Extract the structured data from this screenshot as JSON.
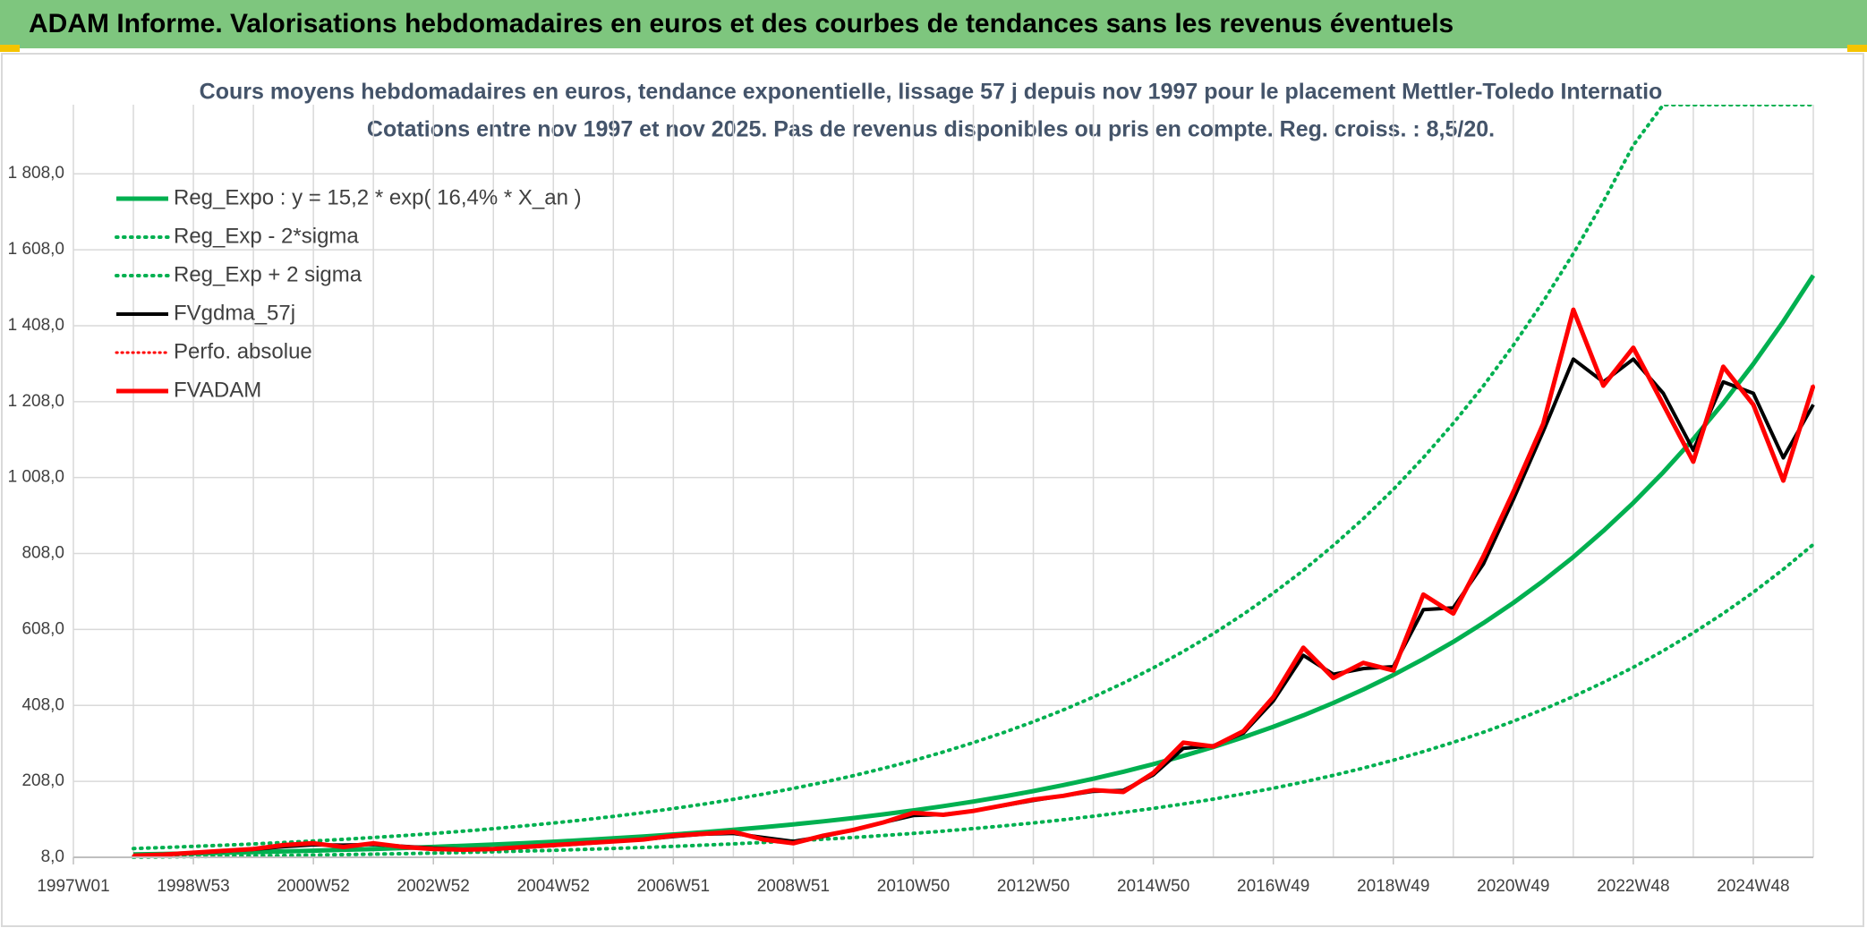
{
  "chart_data": {
    "type": "line",
    "page_title": "ADAM Informe. Valorisations hebdomadaires en euros et des courbes de tendances sans les revenus éventuels",
    "title": "Cours moyens hebdomadaires en euros, tendance exponentielle, lissage 57 j depuis nov 1997 pour le placement Mettler-Toledo Internatio",
    "subtitle": "Cotations entre nov 1997 et nov 2025. Pas de revenus disponibles ou pris en compte. Reg. croiss. : 8,5/20.",
    "categories": [
      "1997W01",
      null,
      null,
      null,
      "1998W53",
      null,
      null,
      null,
      "2000W52",
      null,
      null,
      null,
      "2002W52",
      null,
      null,
      null,
      "2004W52",
      null,
      null,
      null,
      "2006W51",
      null,
      null,
      null,
      "2008W51",
      null,
      null,
      null,
      "2010W50",
      null,
      null,
      null,
      "2012W50",
      null,
      null,
      null,
      "2014W50",
      null,
      null,
      null,
      "2016W49",
      null,
      null,
      null,
      "2018W49",
      null,
      null,
      null,
      "2020W49",
      null,
      null,
      null,
      "2022W48",
      null,
      null,
      null,
      "2024W48",
      null,
      null
    ],
    "ylim": [
      8,
      1990
    ],
    "yticks": [
      {
        "value": 8,
        "label": "8,0"
      },
      {
        "value": 208,
        "label": "208,0"
      },
      {
        "value": 408,
        "label": "408,0"
      },
      {
        "value": 608,
        "label": "608,0"
      },
      {
        "value": 808,
        "label": "808,0"
      },
      {
        "value": 1008,
        "label": "1 008,0"
      },
      {
        "value": 1208,
        "label": "1 208,0"
      },
      {
        "value": 1408,
        "label": "1 408,0"
      },
      {
        "value": 1608,
        "label": "1 608,0"
      },
      {
        "value": 1808,
        "label": "1 808,0"
      }
    ],
    "grid": true,
    "legend": "upper left",
    "series": [
      {
        "name": "Reg_Expo : y = 15,2 * exp( 16,4% *  X_an )",
        "color": "#00b050",
        "style": "solid",
        "width": 5,
        "values": [
          null,
          null,
          15.6,
          16.9,
          18.4,
          19.9,
          21.6,
          23.5,
          25.5,
          27.7,
          30.0,
          32.6,
          35.4,
          38.4,
          41.7,
          45.2,
          49.1,
          53.3,
          57.9,
          62.8,
          68.2,
          74.0,
          80.3,
          87.2,
          94.7,
          102.8,
          111.5,
          121.1,
          131.4,
          142.7,
          154.9,
          168.1,
          182.5,
          198.1,
          215.0,
          233.4,
          253.4,
          275.0,
          298.5,
          324.1,
          351.8,
          381.8,
          414.5,
          449.9,
          488.4,
          530.2,
          575.5,
          624.7,
          678.1,
          736.1,
          799.0,
          867.4,
          941.5,
          1022.0,
          1109.4,
          1204.3,
          1307.2,
          1419.0,
          1540.3
        ]
      },
      {
        "name": "Reg_Exp - 2*sigma",
        "color": "#00b050",
        "style": "dotted",
        "width": 4,
        "values": [
          null,
          null,
          8.4,
          9.1,
          9.9,
          10.7,
          11.7,
          12.7,
          13.8,
          15.0,
          16.2,
          17.6,
          19.1,
          20.7,
          22.5,
          24.4,
          26.5,
          28.8,
          31.3,
          33.9,
          36.8,
          40.0,
          43.4,
          47.1,
          51.1,
          55.5,
          60.2,
          65.4,
          71.0,
          77.1,
          83.6,
          90.8,
          98.6,
          107.0,
          116.1,
          126.0,
          136.8,
          148.5,
          161.2,
          175.0,
          190.0,
          206.2,
          223.8,
          242.9,
          263.7,
          286.3,
          310.8,
          337.3,
          366.2,
          397.5,
          431.5,
          468.4,
          508.4,
          551.9,
          599.1,
          650.3,
          705.9,
          766.3,
          831.8
        ]
      },
      {
        "name": "Reg_Exp + 2 sigma",
        "color": "#00b050",
        "style": "dotted",
        "width": 4,
        "values": [
          null,
          null,
          31.2,
          33.8,
          36.8,
          39.8,
          43.2,
          47.0,
          51.0,
          55.4,
          60.0,
          65.2,
          70.8,
          76.8,
          83.4,
          90.4,
          98.2,
          106.6,
          115.8,
          125.6,
          136.4,
          148.0,
          160.6,
          174.4,
          189.4,
          205.6,
          223.0,
          242.2,
          262.8,
          285.4,
          309.8,
          336.2,
          365.0,
          396.2,
          430.0,
          466.8,
          506.8,
          550.0,
          597.0,
          648.2,
          703.6,
          763.6,
          829.0,
          899.8,
          976.8,
          1060.4,
          1151.0,
          1249.4,
          1356.2,
          1472.2,
          1598.0,
          1734.8,
          1883.0,
          1990,
          1990,
          1990,
          1990,
          1990,
          1990
        ]
      },
      {
        "name": "FVgdma_57j",
        "color": "#000000",
        "style": "solid",
        "width": 4,
        "values": [
          null,
          null,
          12,
          15,
          19,
          24,
          29,
          36,
          41,
          40,
          42,
          37,
          32,
          29,
          30,
          34,
          39,
          44,
          50,
          55,
          63,
          69,
          71,
          60,
          50,
          63,
          80,
          100,
          118,
          121,
          130,
          144,
          158,
          170,
          182,
          184,
          225,
          295,
          302,
          335,
          420,
          540,
          490,
          505,
          510,
          660,
          665,
          780,
          950,
          1130,
          1320,
          1260,
          1320,
          1230,
          1080,
          1260,
          1230,
          1060,
          1200
        ]
      },
      {
        "name": "Perfo. absolue",
        "color": "#ff0000",
        "style": "dotted",
        "width": 3,
        "values": [
          null,
          null,
          12,
          15,
          20,
          25,
          30,
          40,
          45,
          35,
          45,
          35,
          30,
          28,
          30,
          35,
          40,
          45,
          50,
          55,
          65,
          70,
          75,
          55,
          45,
          65,
          80,
          100,
          125,
          120,
          130,
          145,
          160,
          170,
          185,
          180,
          230,
          310,
          300,
          340,
          430,
          560,
          480,
          520,
          500,
          700,
          650,
          800,
          970,
          1150,
          1450,
          1250,
          1350,
          1200,
          1050,
          1300,
          1200,
          1000,
          1250
        ]
      },
      {
        "name": "FVADAM",
        "color": "#ff0000",
        "style": "solid",
        "width": 5,
        "values": [
          null,
          null,
          12,
          15,
          20,
          25,
          30,
          40,
          45,
          35,
          45,
          35,
          30,
          28,
          30,
          35,
          40,
          45,
          50,
          55,
          65,
          70,
          75,
          55,
          45,
          65,
          80,
          100,
          125,
          120,
          130,
          145,
          160,
          170,
          185,
          180,
          230,
          310,
          300,
          340,
          430,
          560,
          480,
          520,
          500,
          700,
          650,
          800,
          970,
          1150,
          1450,
          1250,
          1350,
          1200,
          1050,
          1300,
          1200,
          1000,
          1250
        ]
      }
    ]
  }
}
